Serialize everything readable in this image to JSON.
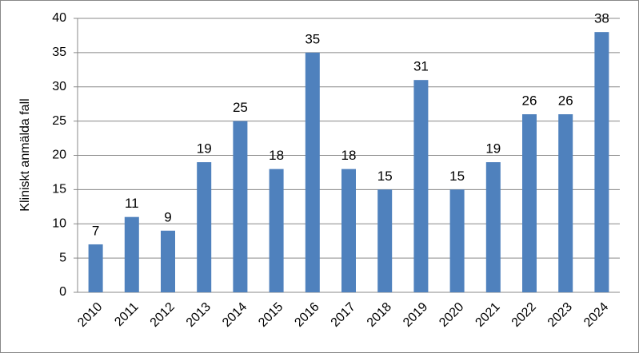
{
  "chart_data": {
    "type": "bar",
    "y_label": "Kliniskt anmälda fall",
    "categories": [
      "2010",
      "2011",
      "2012",
      "2013",
      "2014",
      "2015",
      "2016",
      "2017",
      "2018",
      "2019",
      "2020",
      "2021",
      "2022",
      "2023",
      "2024"
    ],
    "values": [
      7,
      11,
      9,
      19,
      25,
      18,
      35,
      18,
      15,
      31,
      15,
      19,
      26,
      26,
      38
    ],
    "color": "#4f81bd",
    "ylim": [
      0,
      40
    ],
    "yticks": [
      0,
      5,
      10,
      15,
      20,
      25,
      30,
      35,
      40
    ],
    "grid": true
  }
}
